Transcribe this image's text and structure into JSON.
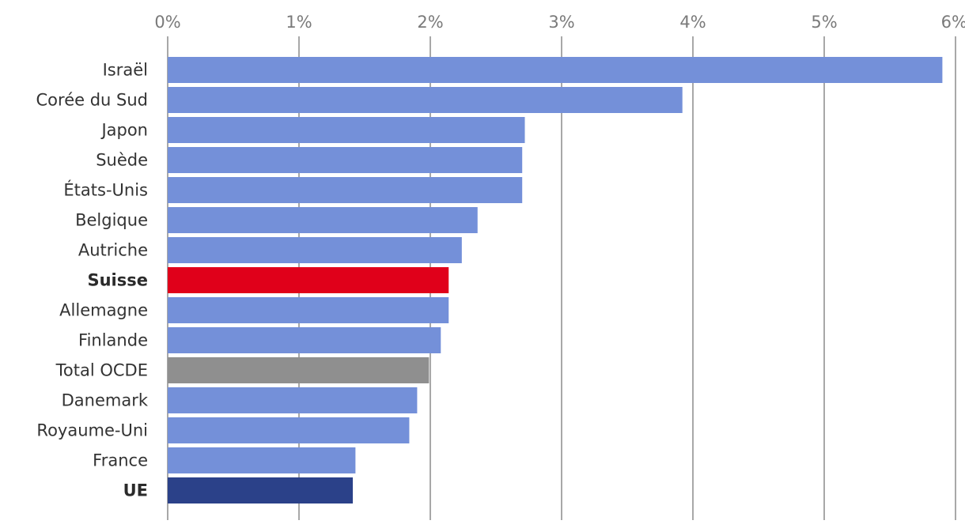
{
  "chart_data": {
    "type": "bar",
    "orientation": "horizontal",
    "title": "",
    "xlabel": "",
    "ylabel": "",
    "xlim": [
      0,
      6
    ],
    "x_ticks": [
      0,
      1,
      2,
      3,
      4,
      5,
      6
    ],
    "x_tick_labels": [
      "0%",
      "1%",
      "2%",
      "3%",
      "4%",
      "5%",
      "6%"
    ],
    "axis_position": "top",
    "grid": true,
    "categories": [
      "Israël",
      "Corée du Sud",
      "Japon",
      "Suède",
      "États-Unis",
      "Belgique",
      "Autriche",
      "Suisse",
      "Allemagne",
      "Finlande",
      "Total OCDE",
      "Danemark",
      "Royaume-Uni",
      "France",
      "UE"
    ],
    "values": [
      5.9,
      3.92,
      2.72,
      2.7,
      2.7,
      2.36,
      2.24,
      2.14,
      2.14,
      2.08,
      1.99,
      1.9,
      1.84,
      1.43,
      1.41
    ],
    "bold_categories": [
      "Suisse",
      "UE"
    ],
    "colors": {
      "default": "#7490d9",
      "Suisse": "#e0001a",
      "Total OCDE": "#8f8f8f",
      "UE": "#2b4189"
    }
  }
}
